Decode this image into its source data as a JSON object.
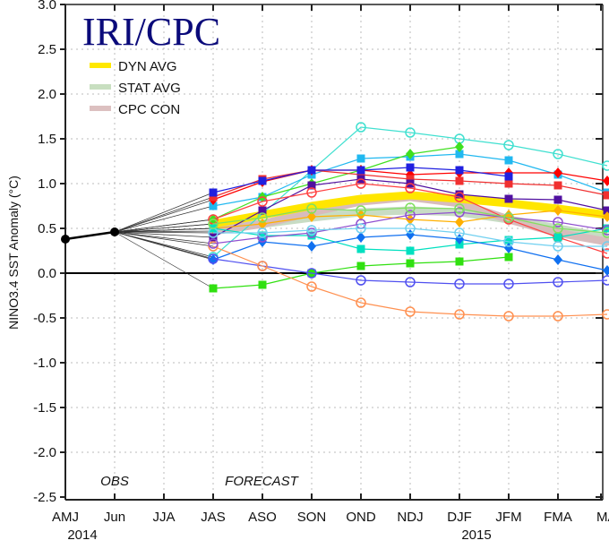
{
  "chart_data": {
    "type": "line",
    "title": "IRI/CPC",
    "ylabel": "NINO3.4 SST Anomaly (°C)",
    "ylim": [
      -2.5,
      3.0
    ],
    "yticks": [
      "3.0",
      "2.5",
      "2.0",
      "1.5",
      "1.0",
      "0.5",
      "0.0",
      "-0.5",
      "-1.0",
      "-1.5",
      "-2.0",
      "-2.5"
    ],
    "categories": [
      "AMJ",
      "Jun",
      "JJA",
      "JAS",
      "ASO",
      "SON",
      "OND",
      "NDJ",
      "DJF",
      "JFM",
      "FMA",
      "MA"
    ],
    "year_labels": [
      {
        "category": "AMJ",
        "label": "2014"
      },
      {
        "category": "DJF",
        "label": "2015"
      }
    ],
    "grid": true,
    "annotations": {
      "obs": "OBS",
      "forecast": "FORECAST"
    },
    "legend_position": "top-left",
    "legend": [
      {
        "name": "DYN AVG",
        "color": "#ffe800"
      },
      {
        "name": "STAT AVG",
        "color": "#c8dfc0"
      },
      {
        "name": "CPC CON",
        "color": "#dcc0c0"
      }
    ],
    "observed": {
      "categories": [
        "AMJ",
        "Jun"
      ],
      "values": [
        0.38,
        0.46
      ]
    },
    "averages": [
      {
        "name": "STAT AVG",
        "color": "#c8dcc4",
        "values": [
          0.5,
          0.55,
          0.62,
          0.68,
          0.7,
          0.68,
          0.6,
          0.5,
          0.4
        ]
      },
      {
        "name": "CPC CON",
        "color": "#d8bcbc",
        "values": [
          0.47,
          0.55,
          0.68,
          0.8,
          0.85,
          0.78,
          0.6,
          0.45,
          0.35
        ]
      },
      {
        "name": "DYN AVG",
        "color": "#ffe600",
        "values": [
          0.55,
          0.65,
          0.75,
          0.83,
          0.87,
          0.83,
          0.78,
          0.72,
          0.65
        ]
      }
    ],
    "forecast_start": "JAS",
    "models": [
      {
        "color": "#40e0d0",
        "marker": "circle",
        "values": [
          0.18,
          null,
          null,
          1.63,
          1.57,
          1.5,
          1.43,
          1.33,
          1.2
        ]
      },
      {
        "color": "#20b8f0",
        "marker": "square",
        "values": [
          0.75,
          0.85,
          1.1,
          1.28,
          1.3,
          1.33,
          1.26,
          1.1,
          0.9
        ]
      },
      {
        "color": "#40e020",
        "marker": "diamond",
        "values": [
          0.6,
          0.85,
          1.0,
          1.15,
          1.33,
          1.41,
          null,
          null,
          null
        ]
      },
      {
        "color": "#ff0000",
        "marker": "diamond",
        "values": [
          0.82,
          1.02,
          1.15,
          1.15,
          1.1,
          1.12,
          1.12,
          1.12,
          1.03
        ]
      },
      {
        "color": "#f03030",
        "marker": "square",
        "values": [
          0.85,
          1.05,
          1.15,
          1.1,
          1.05,
          1.03,
          1.0,
          0.98,
          0.87
        ]
      },
      {
        "color": "#2020e0",
        "marker": "square",
        "values": [
          0.9,
          1.03,
          1.15,
          1.15,
          1.18,
          1.15,
          1.08,
          null,
          null
        ]
      },
      {
        "color": "#5010a0",
        "marker": "square",
        "values": [
          0.4,
          0.7,
          0.98,
          1.05,
          1.0,
          0.88,
          0.83,
          0.82,
          0.7
        ]
      },
      {
        "color": "#ff4040",
        "marker": "circle",
        "values": [
          0.6,
          0.8,
          0.9,
          1.0,
          0.95,
          0.85,
          0.6,
          0.4,
          0.22
        ]
      },
      {
        "color": "#ffb000",
        "marker": "diamond",
        "values": [
          0.5,
          0.55,
          0.63,
          0.65,
          0.6,
          0.57,
          0.65,
          0.7,
          0.63
        ]
      },
      {
        "color": "#00e0c0",
        "marker": "square",
        "values": [
          0.5,
          0.42,
          0.42,
          0.27,
          0.25,
          0.32,
          0.37,
          0.4,
          0.5
        ]
      },
      {
        "color": "#1070f0",
        "marker": "diamond",
        "values": [
          0.15,
          0.35,
          0.3,
          0.4,
          0.43,
          0.38,
          0.28,
          0.15,
          0.03
        ]
      },
      {
        "color": "#30e010",
        "marker": "square",
        "values": [
          -0.17,
          -0.13,
          0.0,
          0.08,
          0.11,
          0.13,
          0.18,
          null,
          null
        ]
      },
      {
        "color": "#5050f0",
        "marker": "circle",
        "values": [
          0.16,
          0.08,
          0.0,
          -0.08,
          -0.1,
          -0.12,
          -0.12,
          -0.1,
          -0.08
        ]
      },
      {
        "color": "#ff9050",
        "marker": "circle",
        "values": [
          0.3,
          0.08,
          -0.15,
          -0.33,
          -0.43,
          -0.46,
          -0.48,
          -0.48,
          -0.46
        ]
      },
      {
        "color": "#9050d0",
        "marker": "circle",
        "values": [
          0.33,
          0.4,
          0.45,
          0.55,
          0.65,
          0.68,
          0.62,
          0.57,
          0.48
        ]
      },
      {
        "color": "#70d0f0",
        "marker": "circle",
        "values": [
          0.45,
          0.45,
          0.48,
          0.5,
          0.5,
          0.45,
          0.35,
          0.3,
          0.3
        ]
      },
      {
        "color": "#80e060",
        "marker": "circle",
        "values": [
          0.55,
          0.62,
          0.72,
          0.7,
          0.73,
          0.72,
          0.62,
          0.5,
          0.45
        ]
      }
    ]
  }
}
